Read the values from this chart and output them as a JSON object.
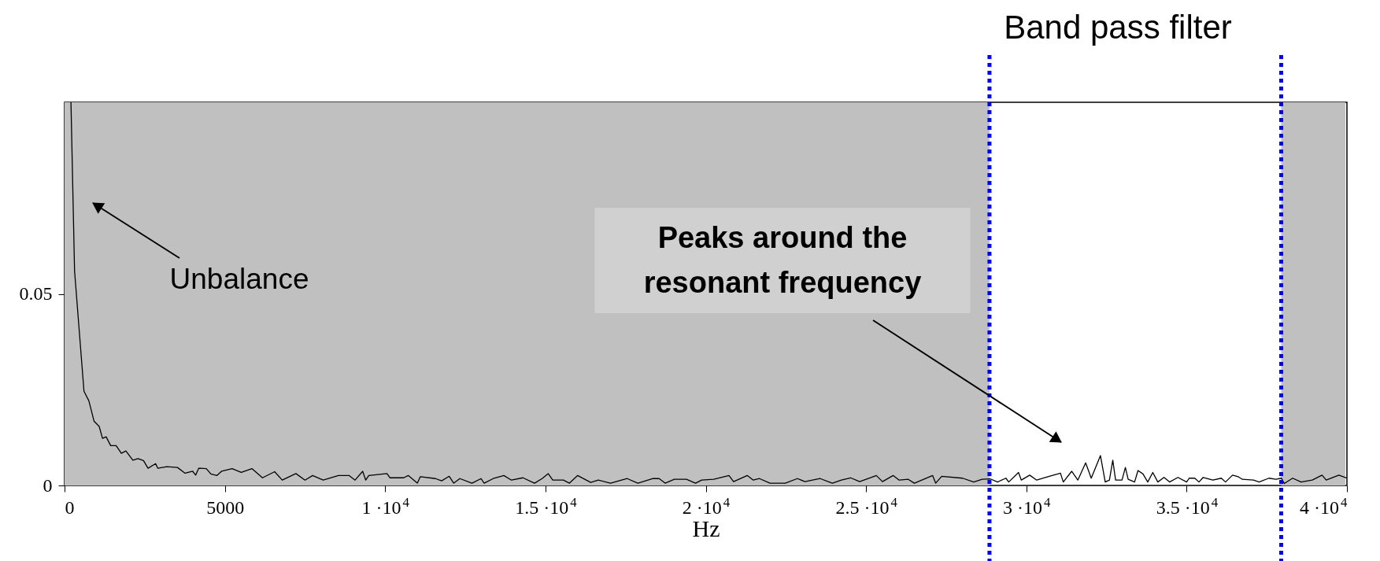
{
  "chart_data": {
    "type": "line",
    "xlabel": "Hz",
    "xlim": [
      0,
      40000
    ],
    "xticks": [
      0,
      5000,
      {
        "value": 10000,
        "label": "1 ·10$^{4}$"
      },
      {
        "value": 15000,
        "label": "1.5 ·10$^{4}$"
      },
      {
        "value": 20000,
        "label": "2 ·10$^{4}$"
      },
      {
        "value": 25000,
        "label": "2.5 ·10$^{4}$"
      },
      {
        "value": 30000,
        "label": "3 ·10$^{4}$"
      },
      {
        "value": 35000,
        "label": "3.5 ·10$^{4}$"
      },
      {
        "value": 40000,
        "label": "4 ·10$^{4}$"
      }
    ],
    "ylim": [
      0,
      0.1
    ],
    "yticks": [
      0,
      0.05
    ],
    "bands": [
      {
        "axis": "x",
        "from": 0,
        "to": 28850,
        "color": "#c0c0c0"
      },
      {
        "axis": "x",
        "from": 37950,
        "to": 39950,
        "color": "#c0c0c0"
      }
    ],
    "ref_lines": [
      {
        "axis": "x",
        "value": 28850,
        "color": "#0000ff",
        "line_style": "dotted"
      },
      {
        "axis": "x",
        "value": 37950,
        "color": "#0000ff",
        "line_style": "dotted"
      }
    ],
    "annotations": [
      "Unbalance",
      "Peaks around the resonant frequency",
      "Band pass filter"
    ],
    "series": [
      {
        "color": "#000000",
        "x": [
          200,
          312,
          606,
          758,
          919,
          1080,
          1184,
          1297,
          1439,
          1610,
          1771,
          1913,
          2131,
          2292,
          2462,
          2604,
          2841,
          2907,
          3191,
          3523,
          3760,
          3996,
          4091,
          4186,
          4422,
          4564,
          4754,
          4896,
          5227,
          5511,
          5843,
          6174,
          6553,
          6790,
          7216,
          7500,
          7737,
          8068,
          8542,
          8873,
          9062,
          9299,
          9394,
          9489,
          10057,
          10152,
          10578,
          10720,
          11004,
          11098,
          11572,
          11761,
          11998,
          12140,
          12330,
          12708,
          12992,
          13087,
          13371,
          13703,
          13939,
          14299,
          14659,
          14896,
          15085,
          15228,
          15559,
          15749,
          16005,
          16412,
          16649,
          17029,
          17550,
          17882,
          18356,
          18545,
          18735,
          19019,
          19398,
          19682,
          19872,
          20251,
          20725,
          20867,
          21294,
          21483,
          21673,
          22005,
          22479,
          22858,
          23095,
          23569,
          23948,
          24232,
          24517,
          24801,
          25322,
          25512,
          25844,
          26033,
          26318,
          26507,
          27076,
          27171,
          27360,
          28010,
          28359,
          28621,
          28883,
          29101,
          29363,
          29450,
          29756,
          29843,
          30105,
          30323,
          30672,
          31065,
          31152,
          31414,
          31606,
          31850,
          32024,
          32312,
          32461,
          32592,
          32696,
          32784,
          32984,
          33089,
          33176,
          33377,
          33482,
          33639,
          33787,
          33944,
          34101,
          34293,
          34468,
          34729,
          35000,
          35079,
          35253,
          35384,
          35515,
          35820,
          36082,
          36213,
          36431,
          36606,
          36737,
          37086,
          37260,
          37566,
          37784,
          37958,
          38045,
          38307,
          38569,
          38918,
          39223,
          39354,
          39747,
          40000
        ],
        "values": [
          0.1,
          0.056,
          0.0246,
          0.0221,
          0.0168,
          0.0154,
          0.0123,
          0.0127,
          0.0104,
          0.0104,
          0.0084,
          0.009,
          0.0066,
          0.007,
          0.0065,
          0.0045,
          0.0057,
          0.0045,
          0.0049,
          0.0047,
          0.0032,
          0.0037,
          0.0027,
          0.0045,
          0.0044,
          0.003,
          0.0026,
          0.0037,
          0.0044,
          0.0034,
          0.0044,
          0.002,
          0.0036,
          0.0014,
          0.0031,
          0.0014,
          0.0026,
          0.0014,
          0.0026,
          0.0026,
          0.0014,
          0.0037,
          0.0014,
          0.0026,
          0.0031,
          0.002,
          0.002,
          0.0026,
          0.0006,
          0.0023,
          0.0018,
          0.0012,
          0.0024,
          0.0006,
          0.0018,
          0.0006,
          0.0018,
          0.0006,
          0.0018,
          0.0026,
          0.0014,
          0.002,
          0.0006,
          0.0018,
          0.0031,
          0.0014,
          0.0014,
          0.0006,
          0.0026,
          0.0008,
          0.0014,
          0.0006,
          0.0018,
          0.0006,
          0.0018,
          0.0018,
          0.0006,
          0.0016,
          0.0016,
          0.0006,
          0.0014,
          0.0016,
          0.0026,
          0.001,
          0.0026,
          0.0014,
          0.0018,
          0.0006,
          0.0006,
          0.0018,
          0.001,
          0.0018,
          0.0006,
          0.0014,
          0.002,
          0.001,
          0.0026,
          0.001,
          0.0026,
          0.0014,
          0.0016,
          0.0006,
          0.0026,
          0.0006,
          0.0024,
          0.0019,
          0.0009,
          0.0016,
          0.0017,
          0.0009,
          0.0019,
          0.0009,
          0.0034,
          0.0014,
          0.0027,
          0.0014,
          0.0023,
          0.0032,
          0.0009,
          0.0037,
          0.0014,
          0.0059,
          0.0019,
          0.0078,
          0.0009,
          0.0014,
          0.0066,
          0.0014,
          0.0014,
          0.0047,
          0.0016,
          0.0009,
          0.0039,
          0.003,
          0.0009,
          0.0034,
          0.0009,
          0.0021,
          0.0009,
          0.0021,
          0.0009,
          0.0019,
          0.0019,
          0.0009,
          0.0021,
          0.0014,
          0.0019,
          0.0009,
          0.0027,
          0.0023,
          0.0016,
          0.0014,
          0.0009,
          0.0019,
          0.0016,
          0.0019,
          0.0005,
          0.0019,
          0.0009,
          0.0014,
          0.0027,
          0.0014,
          0.0027,
          0.0019
        ]
      }
    ]
  }
}
